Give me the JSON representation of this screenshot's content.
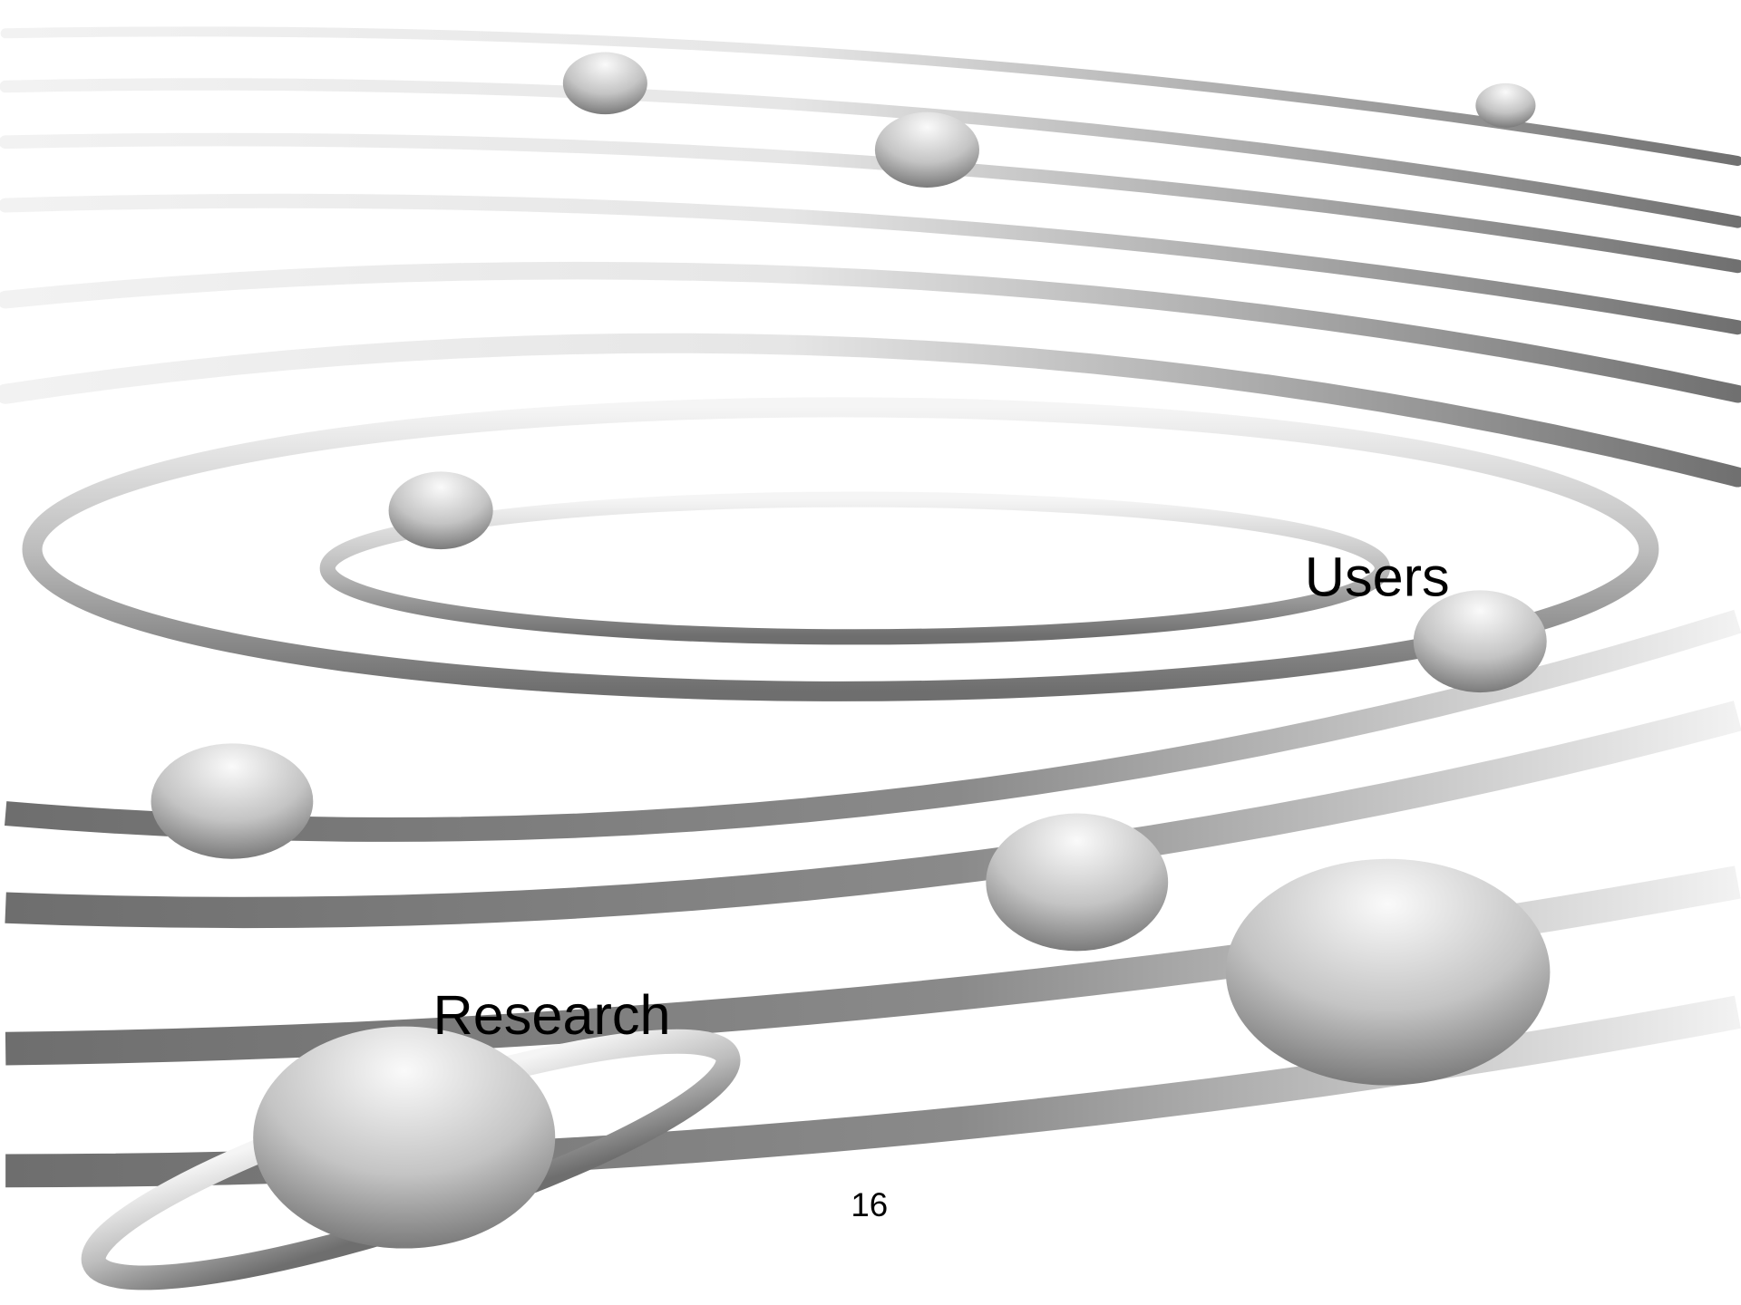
{
  "labels": {
    "users": "Users",
    "research": "Research"
  },
  "page_number": "16"
}
